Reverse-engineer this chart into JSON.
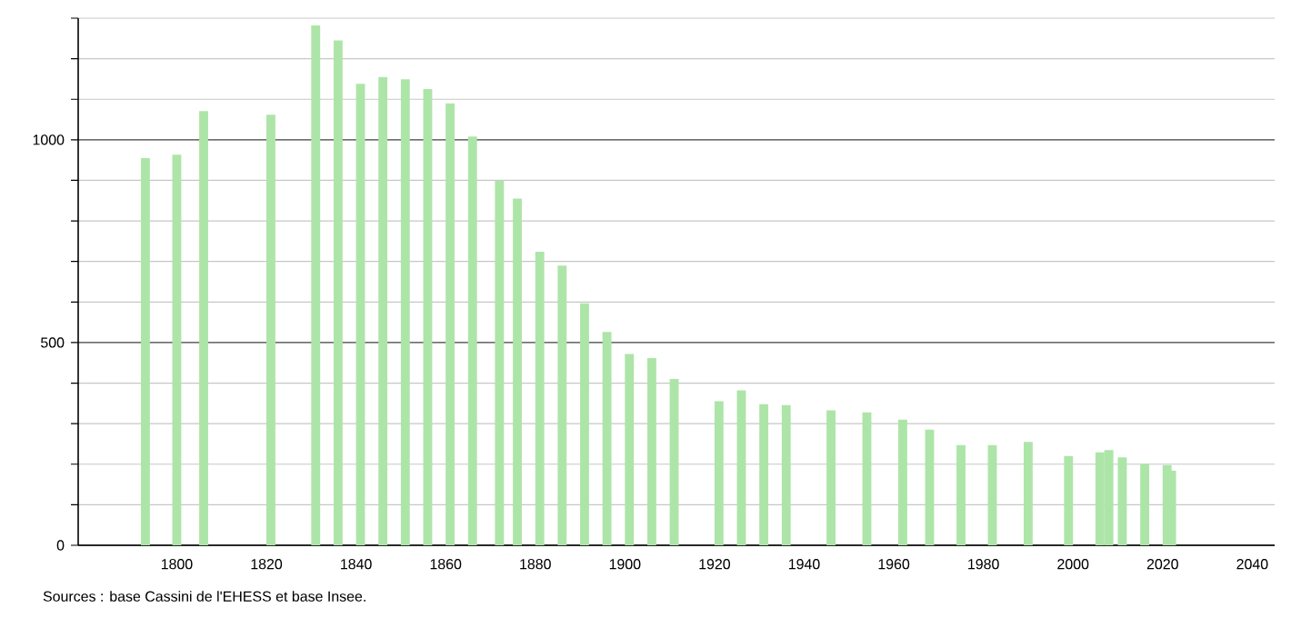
{
  "chart_data": {
    "type": "bar",
    "x": [
      1793,
      1800,
      1806,
      1821,
      1831,
      1836,
      1841,
      1846,
      1851,
      1856,
      1861,
      1866,
      1872,
      1876,
      1881,
      1886,
      1891,
      1896,
      1901,
      1906,
      1911,
      1921,
      1926,
      1931,
      1936,
      1946,
      1954,
      1962,
      1968,
      1975,
      1982,
      1990,
      1999,
      2006,
      2008,
      2011,
      2016,
      2021,
      2022
    ],
    "values": [
      955,
      963,
      1071,
      1062,
      1282,
      1245,
      1138,
      1155,
      1149,
      1125,
      1090,
      1008,
      900,
      855,
      724,
      690,
      597,
      526,
      472,
      462,
      410,
      355,
      382,
      348,
      346,
      333,
      328,
      310,
      285,
      247,
      247,
      255,
      220,
      229,
      235,
      217,
      201,
      198,
      184
    ],
    "color": "#ade5a8",
    "xlim": [
      1778,
      2045
    ],
    "xticks": [
      1800,
      1820,
      1840,
      1860,
      1880,
      1900,
      1920,
      1940,
      1960,
      1980,
      2000,
      2020,
      2040
    ],
    "ylim": [
      0,
      1300
    ],
    "yticks": [
      0,
      {
        "value": 100,
        "label": null
      },
      {
        "value": 200,
        "label": null
      },
      {
        "value": 300,
        "label": null
      },
      {
        "value": 400,
        "label": null
      },
      500,
      {
        "value": 600,
        "label": null
      },
      {
        "value": 700,
        "label": null
      },
      {
        "value": 800,
        "label": null
      },
      {
        "value": 900,
        "label": null
      },
      1000,
      {
        "value": 1100,
        "label": null
      },
      {
        "value": 1200,
        "label": null
      },
      {
        "value": 1300,
        "label": null
      }
    ],
    "grid": "y",
    "annotations": [
      "Sources : base Cassini de l'EHESS et base Insee."
    ]
  }
}
